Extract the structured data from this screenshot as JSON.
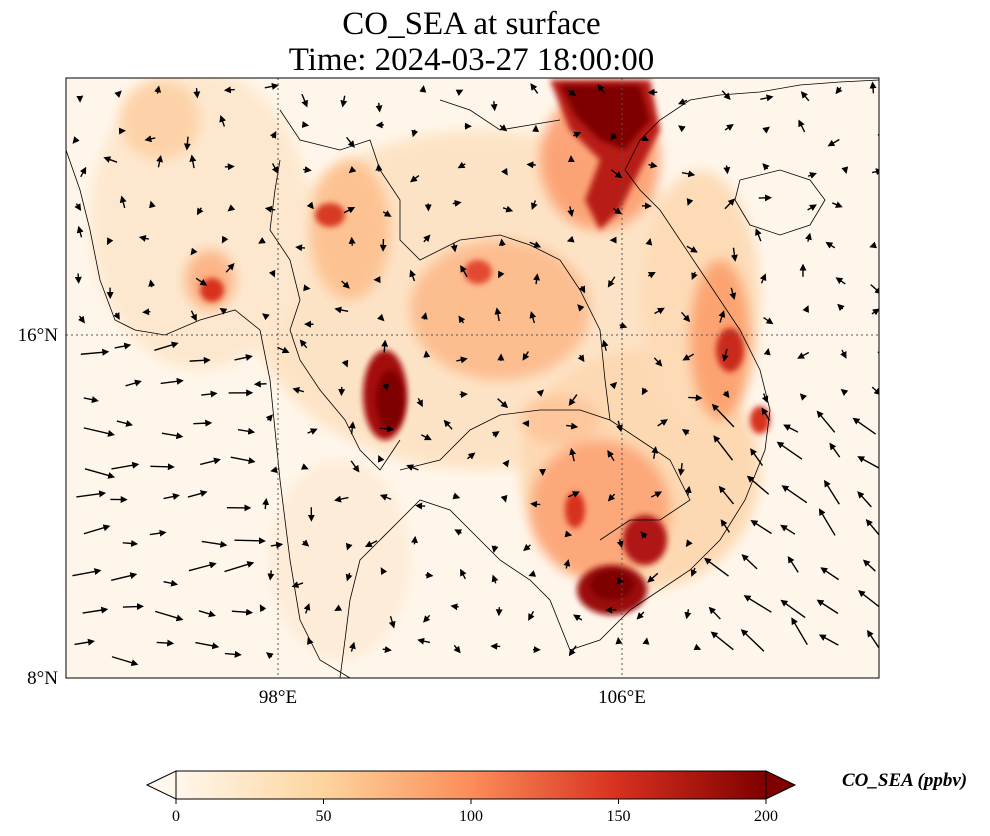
{
  "header": {
    "title": "CO_SEA at surface",
    "subtitle": "Time: 2024-03-27 18:00:00"
  },
  "map": {
    "variable": "CO_SEA",
    "level": "surface",
    "lon_range": [
      93,
      112
    ],
    "lat_range": [
      8,
      22
    ],
    "lon_ticks": [
      {
        "value": 98,
        "label": "98°E"
      },
      {
        "value": 106,
        "label": "106°E"
      }
    ],
    "lat_ticks": [
      {
        "value": 16,
        "label": "16°N"
      },
      {
        "value": 8,
        "label": "8°N"
      }
    ],
    "gridlines": "dotted",
    "overlay": "wind vectors (arrows)"
  },
  "colorbar": {
    "label": "CO_SEA (ppbv)",
    "colormap": "OrRd",
    "min": 0,
    "max": 200,
    "ticks": [
      "0",
      "50",
      "100",
      "150",
      "200"
    ],
    "colors": [
      "#fff7ec",
      "#fdd49e",
      "#fc8d59",
      "#d7301f",
      "#7f0000"
    ],
    "extend": "both"
  }
}
